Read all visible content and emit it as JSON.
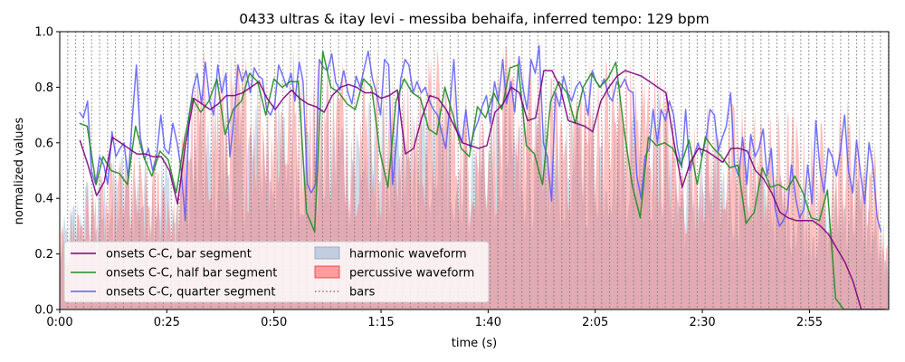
{
  "chart_data": {
    "type": "line",
    "title": "0433 ultras & itay levi - messiba behaifa, inferred tempo: 129 bpm",
    "xlabel": "time (s)",
    "ylabel": "normalized values",
    "xlim": [
      0,
      193.5
    ],
    "ylim": [
      0,
      1.0
    ],
    "x_ticks": [
      0,
      25,
      50,
      75,
      100,
      125,
      150,
      175
    ],
    "x_tick_labels": [
      "0:00",
      "0:25",
      "0:50",
      "1:15",
      "1:40",
      "2:05",
      "2:30",
      "2:55"
    ],
    "y_ticks": [
      0.0,
      0.2,
      0.4,
      0.6,
      0.8,
      1.0
    ],
    "y_tick_labels": [
      "0.0",
      "0.2",
      "0.4",
      "0.6",
      "0.8",
      "1.0"
    ],
    "grid": false,
    "legend_position": "lower-left",
    "legend_columns": 2,
    "bar_period_s": 1.86,
    "series": [
      {
        "name": "onsets C-C, bar segment",
        "color": "#800080",
        "kind": "line",
        "x": [
          4.7,
          6.6,
          8.6,
          10.4,
          12.3,
          14.2,
          16.1,
          18.0,
          20.0,
          21.8,
          23.7,
          25.6,
          27.5,
          29.4,
          31.3,
          33.2,
          35.1,
          37.0,
          38.9,
          40.8,
          42.7,
          44.6,
          46.5,
          48.4,
          50.3,
          52.2,
          54.1,
          56.0,
          57.9,
          59.8,
          61.7,
          63.6,
          65.5,
          67.4,
          69.3,
          71.2,
          73.1,
          75.0,
          76.9,
          78.8,
          80.7,
          82.6,
          84.5,
          86.4,
          88.3,
          90.2,
          92.1,
          94.0,
          95.9,
          97.8,
          99.7,
          101.6,
          103.5,
          105.4,
          107.3,
          109.2,
          111.1,
          113.0,
          114.9,
          116.8,
          118.7,
          120.6,
          122.5,
          124.4,
          126.3,
          128.2,
          130.1,
          132.0,
          133.9,
          135.8,
          137.7,
          139.6,
          141.5,
          143.4,
          145.3,
          147.2,
          149.1,
          151.0,
          152.9,
          154.8,
          156.7,
          158.6,
          160.5,
          162.4,
          164.3,
          166.2,
          168.1,
          170.0,
          171.9,
          173.8,
          175.7,
          177.6,
          179.5,
          181.4,
          183.3,
          185.2,
          187.1,
          189.0,
          190.9,
          192.8
        ],
        "values": [
          0.61,
          0.52,
          0.41,
          0.46,
          0.62,
          0.6,
          0.58,
          0.56,
          0.56,
          0.55,
          0.55,
          0.5,
          0.38,
          0.6,
          0.76,
          0.74,
          0.72,
          0.74,
          0.77,
          0.77,
          0.78,
          0.8,
          0.82,
          0.76,
          0.72,
          0.76,
          0.79,
          0.76,
          0.74,
          0.73,
          0.71,
          0.77,
          0.8,
          0.81,
          0.8,
          0.78,
          0.78,
          0.76,
          0.77,
          0.79,
          0.56,
          0.58,
          0.69,
          0.77,
          0.76,
          0.72,
          0.66,
          0.6,
          0.59,
          0.58,
          0.59,
          0.71,
          0.74,
          0.8,
          0.78,
          0.68,
          0.69,
          0.86,
          0.86,
          0.8,
          0.68,
          0.67,
          0.66,
          0.64,
          0.75,
          0.8,
          0.84,
          0.86,
          0.85,
          0.84,
          0.82,
          0.8,
          0.78,
          0.6,
          0.44,
          0.53,
          0.58,
          0.57,
          0.55,
          0.53,
          0.58,
          0.58,
          0.57,
          0.5,
          0.47,
          0.42,
          0.35,
          0.33,
          0.32,
          0.32,
          0.32,
          0.3,
          0.27,
          0.22,
          0.17,
          0.1,
          0.0,
          0.0,
          0.0,
          0.0
        ]
      },
      {
        "name": "onsets C-C, half bar segment",
        "color": "#008000",
        "kind": "line",
        "x": [
          4.6,
          6.4,
          8.5,
          10.1,
          12.0,
          13.9,
          15.8,
          17.7,
          19.6,
          21.5,
          23.4,
          25.3,
          27.2,
          29.1,
          31.0,
          32.9,
          34.8,
          36.7,
          38.6,
          40.5,
          42.4,
          44.3,
          46.2,
          48.1,
          50.0,
          51.9,
          53.8,
          55.7,
          57.6,
          59.5,
          61.4,
          63.3,
          65.2,
          67.1,
          69.0,
          70.9,
          72.8,
          74.7,
          76.6,
          78.5,
          80.4,
          82.3,
          84.2,
          86.1,
          88.0,
          89.9,
          91.8,
          93.7,
          95.6,
          97.5,
          99.4,
          101.3,
          103.2,
          105.1,
          107.0,
          108.9,
          110.8,
          112.7,
          114.6,
          116.5,
          118.4,
          120.3,
          122.2,
          124.1,
          126.0,
          127.9,
          129.8,
          131.7,
          133.6,
          135.5,
          137.4,
          139.3,
          141.2,
          143.1,
          145.0,
          146.9,
          148.8,
          150.7,
          152.6,
          154.5,
          156.4,
          158.3,
          160.2,
          162.1,
          164.0,
          165.9,
          167.8,
          169.7,
          171.6,
          173.5,
          175.4,
          177.3,
          179.2,
          181.1,
          183.0,
          184.9,
          186.8,
          188.7,
          190.6,
          192.3
        ],
        "values": [
          0.67,
          0.66,
          0.45,
          0.55,
          0.5,
          0.49,
          0.45,
          0.66,
          0.55,
          0.48,
          0.57,
          0.54,
          0.42,
          0.61,
          0.76,
          0.71,
          0.75,
          0.83,
          0.63,
          0.72,
          0.75,
          0.85,
          0.82,
          0.7,
          0.83,
          0.8,
          0.82,
          0.82,
          0.35,
          0.28,
          0.93,
          0.8,
          0.78,
          0.74,
          0.72,
          0.83,
          0.8,
          0.57,
          0.44,
          0.75,
          0.83,
          0.78,
          0.76,
          0.65,
          0.63,
          0.8,
          0.7,
          0.58,
          0.55,
          0.73,
          0.69,
          0.78,
          0.72,
          0.87,
          0.88,
          0.59,
          0.56,
          0.45,
          0.75,
          0.82,
          0.78,
          0.67,
          0.8,
          0.85,
          0.8,
          0.83,
          0.89,
          0.65,
          0.45,
          0.33,
          0.62,
          0.59,
          0.6,
          0.58,
          0.52,
          0.61,
          0.45,
          0.62,
          0.58,
          0.55,
          0.51,
          0.52,
          0.31,
          0.35,
          0.51,
          0.44,
          0.45,
          0.43,
          0.48,
          0.42,
          0.33,
          0.32,
          0.43,
          0.04,
          0.0,
          0.0,
          0.0,
          0.0,
          0.0,
          0.0
        ]
      },
      {
        "name": "onsets C-C, quarter segment",
        "color": "#0000ff",
        "kind": "line",
        "x": [
          4.6,
          5.5,
          6.5,
          7.4,
          8.4,
          9.3,
          10.3,
          11.2,
          12.2,
          13.1,
          14.1,
          15.0,
          16.0,
          16.9,
          17.9,
          18.8,
          19.8,
          20.7,
          21.7,
          22.6,
          23.6,
          24.5,
          25.5,
          26.4,
          27.4,
          28.3,
          29.3,
          30.2,
          31.2,
          32.1,
          33.1,
          34.0,
          35.0,
          35.9,
          36.9,
          37.8,
          38.8,
          39.7,
          40.7,
          41.6,
          42.6,
          43.5,
          44.5,
          45.4,
          46.4,
          47.3,
          48.3,
          49.2,
          50.2,
          51.1,
          52.1,
          53.0,
          54.0,
          54.9,
          55.9,
          56.8,
          57.8,
          58.7,
          59.7,
          60.6,
          61.6,
          62.5,
          63.5,
          64.4,
          65.4,
          66.3,
          67.3,
          68.2,
          69.2,
          70.1,
          71.1,
          72.0,
          73.0,
          73.9,
          74.9,
          75.8,
          76.8,
          77.7,
          78.7,
          79.6,
          80.6,
          81.5,
          82.5,
          83.4,
          84.4,
          85.3,
          86.3,
          87.2,
          88.2,
          89.1,
          90.1,
          91.0,
          92.0,
          92.9,
          93.9,
          94.8,
          95.8,
          96.7,
          97.7,
          98.6,
          99.6,
          100.5,
          101.5,
          102.4,
          103.4,
          104.3,
          105.3,
          106.2,
          107.2,
          108.1,
          109.1,
          110.0,
          111.0,
          111.9,
          112.9,
          113.8,
          114.8,
          115.7,
          116.7,
          117.6,
          118.6,
          119.5,
          120.5,
          121.4,
          122.4,
          123.3,
          124.3,
          125.2,
          126.2,
          127.1,
          128.1,
          129.0,
          130.0,
          130.9,
          131.9,
          132.8,
          133.8,
          134.7,
          135.7,
          136.6,
          137.6,
          138.5,
          139.5,
          140.4,
          141.4,
          142.3,
          143.3,
          144.2,
          145.2,
          146.1,
          147.1,
          148.0,
          149.0,
          149.9,
          150.9,
          151.8,
          152.8,
          153.7,
          154.7,
          155.6,
          156.6,
          157.5,
          158.5,
          159.4,
          160.4,
          161.3,
          162.3,
          163.2,
          164.2,
          165.1,
          166.1,
          167.0,
          168.0,
          168.9,
          169.9,
          170.8,
          171.8,
          172.7,
          173.7,
          174.6,
          175.6,
          176.5,
          177.5,
          178.4,
          179.4,
          180.3,
          181.3,
          182.2,
          183.2,
          184.1,
          185.1,
          186.0,
          187.0,
          187.9,
          188.9,
          189.8,
          190.8,
          191.7
        ],
        "values": [
          0.71,
          0.69,
          0.75,
          0.5,
          0.45,
          0.55,
          0.52,
          0.45,
          0.64,
          0.55,
          0.58,
          0.6,
          0.47,
          0.68,
          0.88,
          0.62,
          0.54,
          0.58,
          0.5,
          0.55,
          0.7,
          0.58,
          0.56,
          0.67,
          0.6,
          0.51,
          0.32,
          0.7,
          0.8,
          0.85,
          0.74,
          0.89,
          0.75,
          0.7,
          0.88,
          0.78,
          0.85,
          0.55,
          0.69,
          0.88,
          0.82,
          0.86,
          0.78,
          0.87,
          0.84,
          0.83,
          0.72,
          0.7,
          0.74,
          0.88,
          0.84,
          0.8,
          0.85,
          0.75,
          0.89,
          0.82,
          0.45,
          0.42,
          0.45,
          0.9,
          0.87,
          0.86,
          0.92,
          0.82,
          0.79,
          0.86,
          0.78,
          0.74,
          0.84,
          0.8,
          0.87,
          0.93,
          0.83,
          0.78,
          0.7,
          0.9,
          0.88,
          0.45,
          0.62,
          0.83,
          0.9,
          0.88,
          0.78,
          0.82,
          0.78,
          0.8,
          0.75,
          0.72,
          0.7,
          0.64,
          0.58,
          0.72,
          0.9,
          0.65,
          0.6,
          0.72,
          0.58,
          0.64,
          0.68,
          0.73,
          0.77,
          0.67,
          0.82,
          0.75,
          0.9,
          0.74,
          0.82,
          0.71,
          0.91,
          0.8,
          0.72,
          0.9,
          0.85,
          0.95,
          0.6,
          0.55,
          0.39,
          0.78,
          0.73,
          0.84,
          0.78,
          0.75,
          0.8,
          0.82,
          0.78,
          0.7,
          0.86,
          0.82,
          0.8,
          0.83,
          0.77,
          0.75,
          0.82,
          0.8,
          0.83,
          0.79,
          0.78,
          0.48,
          0.4,
          0.55,
          0.58,
          0.72,
          0.6,
          0.72,
          0.68,
          0.75,
          0.7,
          0.58,
          0.51,
          0.72,
          0.5,
          0.55,
          0.6,
          0.55,
          0.62,
          0.72,
          0.7,
          0.57,
          0.62,
          0.66,
          0.78,
          0.52,
          0.48,
          0.62,
          0.45,
          0.63,
          0.55,
          0.58,
          0.65,
          0.48,
          0.58,
          0.36,
          0.3,
          0.32,
          0.36,
          0.52,
          0.4,
          0.33,
          0.36,
          0.52,
          0.38,
          0.68,
          0.5,
          0.42,
          0.58,
          0.55,
          0.48,
          0.57,
          0.7,
          0.5,
          0.42,
          0.61,
          0.48,
          0.38,
          0.6,
          0.52,
          0.33,
          0.28
        ]
      },
      {
        "name": "harmonic waveform",
        "color": "#b0c4de",
        "kind": "area",
        "envelope_x": [
          0,
          5,
          10,
          15,
          20,
          25,
          27,
          30,
          35,
          40,
          45,
          50,
          55,
          60,
          65,
          70,
          75,
          80,
          85,
          90,
          95,
          100,
          105,
          110,
          115,
          120,
          125,
          130,
          135,
          140,
          145,
          150,
          155,
          160,
          165,
          170,
          175,
          180,
          185,
          190,
          193.5
        ],
        "envelope_values": [
          0.3,
          0.5,
          0.52,
          0.62,
          0.6,
          0.65,
          0.45,
          0.7,
          0.75,
          0.78,
          0.8,
          0.78,
          0.8,
          0.78,
          0.82,
          0.8,
          0.75,
          0.7,
          0.8,
          0.82,
          0.72,
          0.78,
          0.82,
          0.8,
          0.68,
          0.78,
          0.8,
          0.82,
          0.8,
          0.85,
          0.55,
          0.65,
          0.62,
          0.65,
          0.55,
          0.55,
          0.45,
          0.45,
          0.58,
          0.4,
          0.15
        ]
      },
      {
        "name": "percussive waveform",
        "color": "#ff0000",
        "kind": "area",
        "envelope_x": [
          0,
          5,
          10,
          15,
          20,
          25,
          27,
          30,
          35,
          40,
          45,
          50,
          55,
          60,
          65,
          70,
          75,
          80,
          85,
          90,
          95,
          100,
          105,
          110,
          115,
          120,
          125,
          130,
          135,
          140,
          145,
          150,
          155,
          160,
          165,
          170,
          175,
          180,
          185,
          190,
          193.5
        ],
        "envelope_values": [
          0.28,
          0.48,
          0.5,
          0.6,
          0.55,
          0.6,
          0.4,
          0.9,
          0.98,
          0.95,
          1.0,
          0.95,
          1.0,
          0.98,
          0.97,
          0.95,
          0.9,
          0.85,
          0.95,
          0.98,
          0.8,
          0.9,
          0.98,
          0.92,
          0.85,
          0.95,
          0.96,
          0.97,
          0.95,
          0.98,
          0.62,
          0.78,
          0.72,
          0.82,
          0.72,
          0.75,
          0.68,
          0.7,
          0.82,
          0.66,
          0.2
        ]
      },
      {
        "name": "bars",
        "color": "#808080",
        "kind": "vlines-dotted"
      }
    ]
  }
}
